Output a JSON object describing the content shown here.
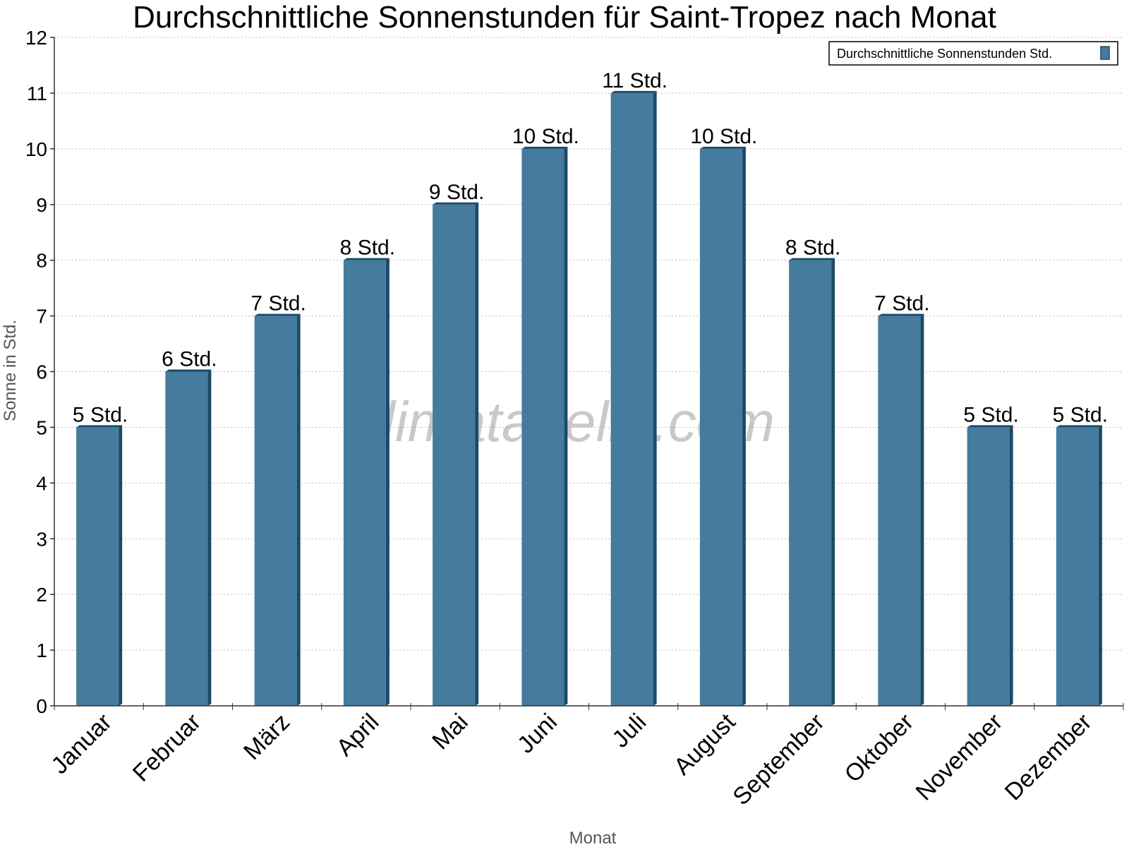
{
  "chart_data": {
    "type": "bar",
    "title": "Durchschnittliche Sonnenstunden für Saint-Tropez nach Monat",
    "xlabel": "Monat",
    "ylabel": "Sonne in Std.",
    "categories": [
      "Januar",
      "Februar",
      "März",
      "April",
      "Mai",
      "Juni",
      "Juli",
      "August",
      "September",
      "Oktober",
      "November",
      "Dezember"
    ],
    "series": [
      {
        "name": "Durchschnittliche Sonnenstunden Std.",
        "values": [
          5,
          6,
          7,
          8,
          9,
          10,
          11,
          10,
          8,
          7,
          5,
          5
        ],
        "data_labels": [
          "5 Std.",
          "6 Std.",
          "7 Std.",
          "8 Std.",
          "9 Std.",
          "10 Std.",
          "11 Std.",
          "10 Std.",
          "8 Std.",
          "7 Std.",
          "5 Std.",
          "5 Std."
        ],
        "color": "#457b9d",
        "side_color": "#1a4a6a"
      }
    ],
    "ylim": [
      0,
      12
    ],
    "yticks": [
      0,
      1,
      2,
      3,
      4,
      5,
      6,
      7,
      8,
      9,
      10,
      11,
      12
    ],
    "grid": true,
    "legend": "top-right",
    "watermark": "klimatabelle.com"
  }
}
